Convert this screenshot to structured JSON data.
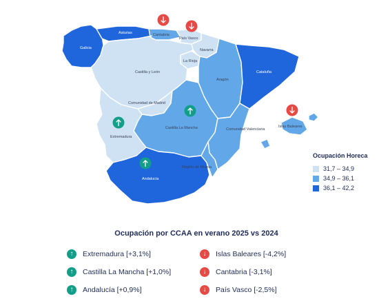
{
  "map": {
    "regions": [
      {
        "id": "galicia",
        "label": "Galicia",
        "range": "high"
      },
      {
        "id": "asturias",
        "label": "Asturias",
        "range": "high"
      },
      {
        "id": "cantabria",
        "label": "Cantabria",
        "range": "mid"
      },
      {
        "id": "pais-vasco",
        "label": "País Vasco",
        "range": "low"
      },
      {
        "id": "navarra",
        "label": "Navarra",
        "range": "low"
      },
      {
        "id": "la-rioja",
        "label": "La Rioja",
        "range": "low"
      },
      {
        "id": "castilla-y-leon",
        "label": "Castilla y León",
        "range": "low"
      },
      {
        "id": "aragon",
        "label": "Aragón",
        "range": "mid"
      },
      {
        "id": "cataluna",
        "label": "Cataluña",
        "range": "high"
      },
      {
        "id": "madrid",
        "label": "Comunidad de Madrid",
        "range": "low"
      },
      {
        "id": "castilla-la-mancha",
        "label": "Castilla La Mancha",
        "range": "mid"
      },
      {
        "id": "valencia",
        "label": "Comunidad Valenciana",
        "range": "mid"
      },
      {
        "id": "extremadura",
        "label": "Extremadura",
        "range": "low"
      },
      {
        "id": "andalucia",
        "label": "Andalucía",
        "range": "high"
      },
      {
        "id": "murcia",
        "label": "Región de Murcia",
        "range": "mid"
      },
      {
        "id": "baleares",
        "label": "Islas Baleares",
        "range": "mid"
      }
    ],
    "trend_markers": [
      {
        "region": "cantabria",
        "direction": "down",
        "icon": "arrow-down-icon"
      },
      {
        "region": "pais-vasco",
        "direction": "down",
        "icon": "arrow-down-icon"
      },
      {
        "region": "baleares",
        "direction": "down",
        "icon": "arrow-down-icon"
      },
      {
        "region": "castilla-la-mancha",
        "direction": "up",
        "icon": "arrow-up-icon"
      },
      {
        "region": "extremadura",
        "direction": "up",
        "icon": "arrow-up-icon"
      },
      {
        "region": "andalucia",
        "direction": "up",
        "icon": "arrow-up-icon"
      }
    ]
  },
  "legend": {
    "title": "Ocupación Horeca",
    "items": [
      {
        "key": "low",
        "label": "31,7 – 34,9",
        "color": "#cfe2f3"
      },
      {
        "key": "mid",
        "label": "34,9 – 36,1",
        "color": "#62a8e8"
      },
      {
        "key": "high",
        "label": "36,1 – 42,2",
        "color": "#1f66dd"
      }
    ]
  },
  "panel": {
    "title": "Ocupación por CCAA en verano 2025 vs 2024",
    "increases": [
      {
        "label": "Extremadura [+3,1%]",
        "icon": "arrow-up-icon"
      },
      {
        "label": "Castilla La Mancha [+1,0%]",
        "icon": "arrow-up-icon"
      },
      {
        "label": "Andalucía [+0,9%]",
        "icon": "arrow-up-icon"
      }
    ],
    "decreases": [
      {
        "label": "Islas Baleares [-4,2%]",
        "icon": "arrow-down-icon"
      },
      {
        "label": "Cantabria [-3,1%]",
        "icon": "arrow-down-icon"
      },
      {
        "label": "País Vasco [-2,5%]",
        "icon": "arrow-down-icon"
      }
    ],
    "colors": {
      "up": "#139e8a",
      "down": "#e64a45"
    }
  }
}
